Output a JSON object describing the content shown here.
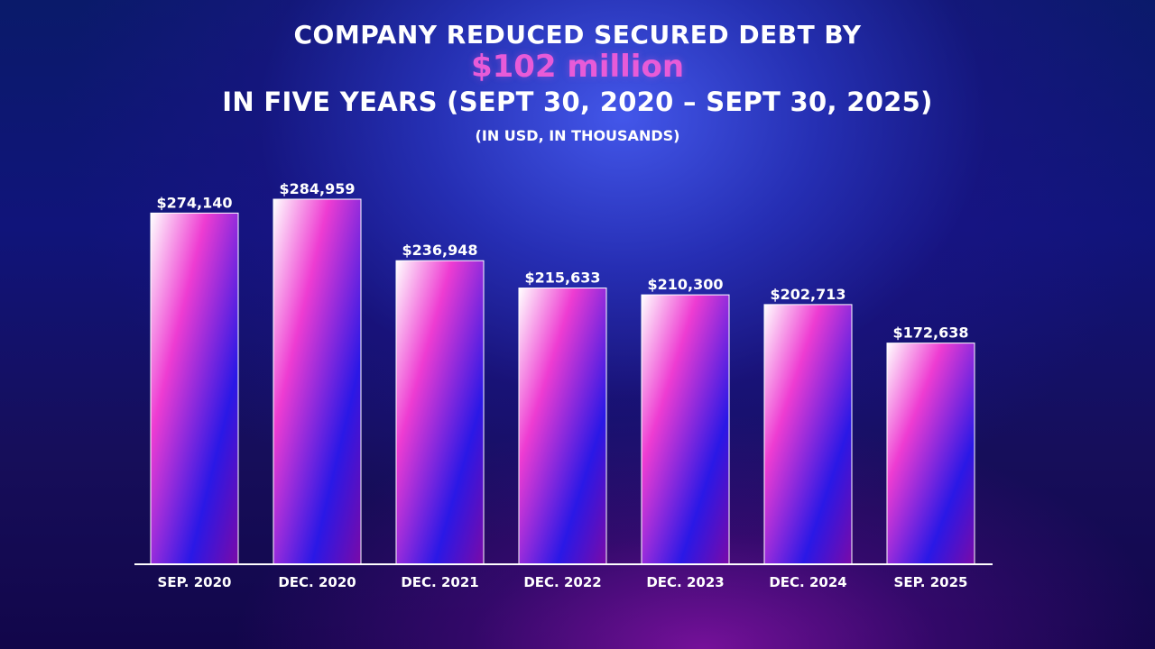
{
  "header": {
    "line1": "COMPANY REDUCED SECURED DEBT BY",
    "highlight": "$102 million",
    "line3": "IN FIVE YEARS (SEPT 30, 2020 – SEPT 30, 2025)",
    "subtitle": "(IN USD, IN THOUSANDS)"
  },
  "colors": {
    "bar_gradient": [
      "#ffffff",
      "#ee3cd2",
      "#2a18e6",
      "#7a0aa8"
    ],
    "highlight": "#e85bd8"
  },
  "chart_data": {
    "type": "bar",
    "categories": [
      "SEP. 2020",
      "DEC. 2020",
      "DEC. 2021",
      "DEC. 2022",
      "DEC. 2023",
      "DEC. 2024",
      "SEP. 2025"
    ],
    "values": [
      274140,
      284959,
      236948,
      215633,
      210300,
      202713,
      172638
    ],
    "value_labels": [
      "$274,140",
      "$284,959",
      "$236,948",
      "$215,633",
      "$210,300",
      "$202,713",
      "$172,638"
    ],
    "ylim": [
      0,
      284959
    ],
    "grid": false,
    "legend": "none"
  }
}
